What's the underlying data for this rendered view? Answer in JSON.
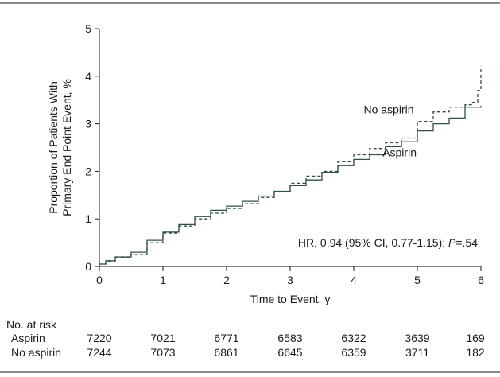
{
  "chart_data": {
    "type": "line",
    "xlabel": "Time to Event, y",
    "ylabel_lines": [
      "Proportion of Patients With",
      "Primary End Point Event, %"
    ],
    "xlim": [
      0,
      6
    ],
    "ylim": [
      0,
      5
    ],
    "xticks": [
      "0",
      "1",
      "2",
      "3",
      "4",
      "5",
      "6"
    ],
    "yticks": [
      "0",
      "1",
      "2",
      "3",
      "4",
      "5"
    ],
    "grid": false,
    "series": [
      {
        "name": "Aspirin",
        "style": "solid",
        "color": "#2f4f4f",
        "x": [
          0,
          0.1,
          0.25,
          0.5,
          0.75,
          1.0,
          1.25,
          1.5,
          1.75,
          2.0,
          2.25,
          2.5,
          2.75,
          3.0,
          3.25,
          3.5,
          3.75,
          4.0,
          4.25,
          4.5,
          4.75,
          5.0,
          5.25,
          5.5,
          5.75,
          6.0
        ],
        "y": [
          0.05,
          0.12,
          0.2,
          0.3,
          0.55,
          0.72,
          0.88,
          1.05,
          1.18,
          1.27,
          1.37,
          1.48,
          1.58,
          1.7,
          1.82,
          1.98,
          2.12,
          2.25,
          2.35,
          2.52,
          2.62,
          2.85,
          3.0,
          3.12,
          3.35,
          3.38
        ]
      },
      {
        "name": "No aspirin",
        "style": "dashed",
        "color": "#2f4f4f",
        "x": [
          0,
          0.1,
          0.25,
          0.5,
          0.75,
          1.0,
          1.25,
          1.5,
          1.75,
          2.0,
          2.25,
          2.5,
          2.75,
          3.0,
          3.25,
          3.5,
          3.75,
          4.0,
          4.25,
          4.5,
          4.75,
          5.0,
          5.25,
          5.5,
          5.75,
          5.85,
          5.95,
          6.0
        ],
        "y": [
          0.05,
          0.1,
          0.18,
          0.25,
          0.5,
          0.7,
          0.85,
          1.0,
          1.12,
          1.22,
          1.32,
          1.45,
          1.57,
          1.75,
          1.9,
          2.0,
          2.2,
          2.35,
          2.48,
          2.6,
          2.7,
          3.05,
          3.25,
          3.35,
          3.4,
          3.45,
          3.7,
          4.2
        ]
      }
    ],
    "series_labels": [
      {
        "text": "No aspirin",
        "x": 4.55,
        "y": 3.22
      },
      {
        "text": "Aspirin",
        "x": 4.72,
        "y": 2.32
      }
    ],
    "annotation": {
      "prefix": "HR, 0.94 (95% CI, 0.77-1.15); ",
      "italic": "P",
      "suffix": "=.54",
      "x": 5.95,
      "y": 0.42
    }
  },
  "risk_table": {
    "title": "No. at risk",
    "rows": [
      {
        "label": "Aspirin",
        "values": [
          "7220",
          "7021",
          "6771",
          "6583",
          "6322",
          "3639",
          "169"
        ]
      },
      {
        "label": "No aspirin",
        "values": [
          "7244",
          "7073",
          "6861",
          "6645",
          "6359",
          "3711",
          "182"
        ]
      }
    ]
  }
}
